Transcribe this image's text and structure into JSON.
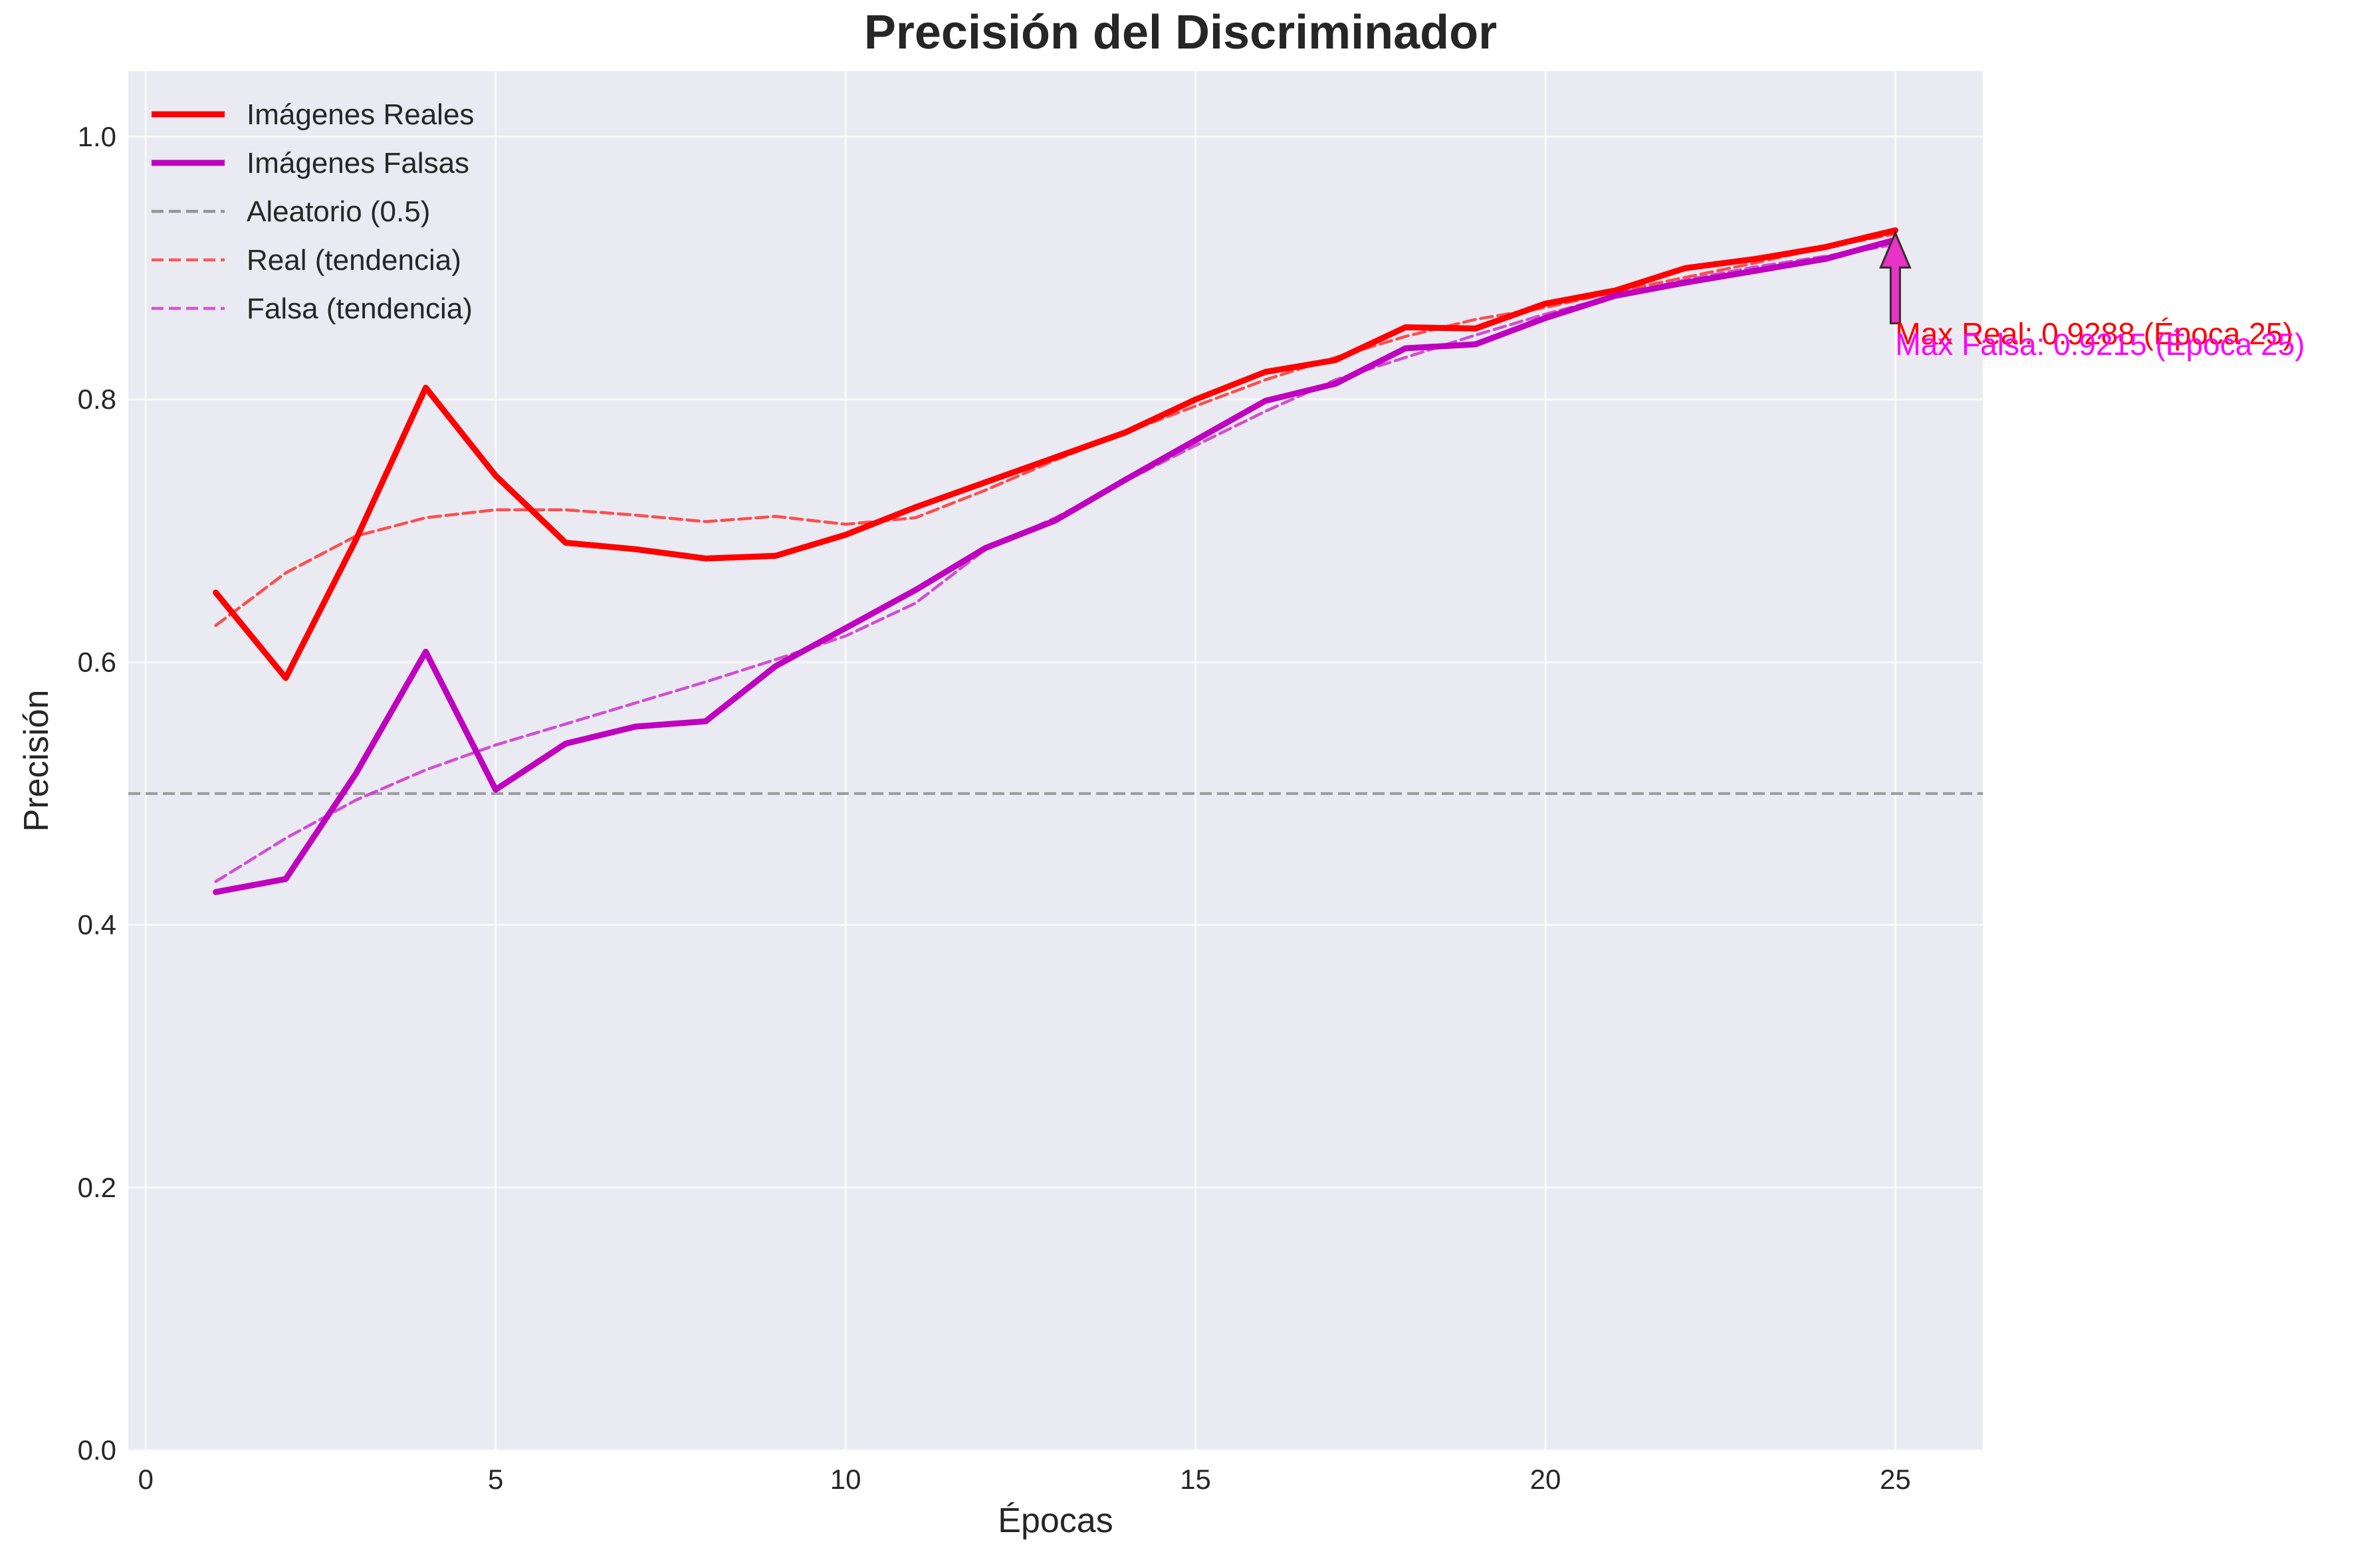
{
  "chart_data": {
    "type": "line",
    "title": "Precisión del Discriminador",
    "xlabel": "Épocas",
    "ylabel": "Precisión",
    "xlim": [
      -0.25,
      26.25
    ],
    "ylim": [
      0,
      1.05
    ],
    "x_ticks": [
      0,
      5,
      10,
      15,
      20,
      25
    ],
    "y_ticks": [
      0.0,
      0.2,
      0.4,
      0.6,
      0.8,
      1.0
    ],
    "x_tick_labels": [
      "0",
      "5",
      "10",
      "15",
      "20",
      "25"
    ],
    "y_tick_labels": [
      "0.0",
      "0.2",
      "0.4",
      "0.6",
      "0.8",
      "1.0"
    ],
    "grid": true,
    "legend_position": "top-left",
    "background": "#eaeaf2",
    "x": [
      1,
      2,
      3,
      4,
      5,
      6,
      7,
      8,
      9,
      10,
      11,
      12,
      13,
      14,
      15,
      16,
      17,
      18,
      19,
      20,
      21,
      22,
      23,
      24,
      25
    ],
    "series": [
      {
        "name": "Imágenes Reales",
        "color": "#ff0000",
        "style": "solid",
        "values": [
          0.653,
          0.588,
          0.693,
          0.809,
          0.742,
          0.691,
          0.686,
          0.679,
          0.681,
          0.697,
          0.718,
          0.737,
          0.756,
          0.775,
          0.8,
          0.821,
          0.83,
          0.855,
          0.854,
          0.873,
          0.883,
          0.9,
          0.907,
          0.916,
          0.9288
        ]
      },
      {
        "name": "Imágenes Falsas",
        "color": "#bf00bf",
        "style": "solid",
        "values": [
          0.425,
          0.435,
          0.515,
          0.608,
          0.503,
          0.538,
          0.551,
          0.555,
          0.597,
          0.626,
          0.655,
          0.687,
          0.708,
          0.739,
          0.769,
          0.799,
          0.812,
          0.839,
          0.842,
          0.862,
          0.879,
          0.889,
          0.898,
          0.907,
          0.9215
        ]
      },
      {
        "name": "Aleatorio (0.5)",
        "color": "#808080",
        "style": "dashed",
        "constant": 0.5
      },
      {
        "name": "Real (tendencia)",
        "color": "#ff3333",
        "style": "dashed",
        "values": [
          0.628,
          0.668,
          0.696,
          0.71,
          0.716,
          0.716,
          0.712,
          0.707,
          0.711,
          0.705,
          0.71,
          0.731,
          0.754,
          0.775,
          0.795,
          0.815,
          0.832,
          0.848,
          0.861,
          0.87,
          0.882,
          0.893,
          0.904,
          0.916,
          0.926
        ]
      },
      {
        "name": "Falsa (tendencia)",
        "color": "#cc33cc",
        "style": "dashed",
        "values": [
          0.433,
          0.466,
          0.495,
          0.518,
          0.537,
          0.553,
          0.569,
          0.585,
          0.602,
          0.62,
          0.645,
          0.686,
          0.71,
          0.738,
          0.765,
          0.791,
          0.815,
          0.832,
          0.849,
          0.865,
          0.879,
          0.891,
          0.901,
          0.909,
          0.918
        ]
      }
    ],
    "annotations": [
      {
        "text": "Max Real: 0.9288 (Época 25)",
        "x": 25,
        "y": 0.9288,
        "color": "#ff0000"
      },
      {
        "text": "Max Falsa: 0.9215 (Época 25)",
        "x": 25,
        "y": 0.9215,
        "color": "#ff00ff"
      }
    ]
  }
}
